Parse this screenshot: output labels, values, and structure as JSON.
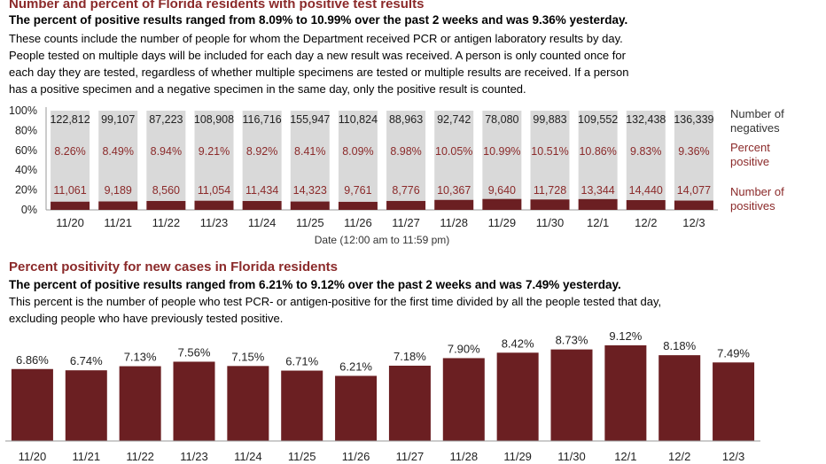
{
  "section1": {
    "title": "Number and percent of Florida residents with positive test results",
    "summary": "The percent of positive results ranged from 8.09% to 10.99% over the past 2 weeks and was 9.36% yesterday.",
    "desc_lines": [
      "These counts include the number of people for whom the Department received PCR or antigen laboratory results by day.",
      "People tested on multiple days will be included for each day a new result was received. A person is only counted once for",
      "each day they are tested, regardless of whether multiple specimens are tested or multiple results are received. If a person",
      "has a positive specimen and a negative specimen in the same day, only the positive result is counted."
    ]
  },
  "section2": {
    "title": "Percent positivity for new cases in Florida residents",
    "summary": "The percent of positive results ranged from 6.21% to 9.12% over the past 2 weeks and was 7.49% yesterday.",
    "desc_lines": [
      "This percent is the number of people who test PCR- or antigen-positive for the first time divided by all the people tested that day,",
      "excluding people who have previously tested positive."
    ]
  },
  "colors": {
    "negatives": "#d9d9d9",
    "positives": "#6b1f22",
    "accent": "#8b2a2a"
  },
  "chart_data": [
    {
      "type": "bar",
      "stacked": true,
      "percent_stacked": true,
      "categories": [
        "11/20",
        "11/21",
        "11/22",
        "11/23",
        "11/24",
        "11/25",
        "11/26",
        "11/27",
        "11/28",
        "11/29",
        "11/30",
        "12/1",
        "12/2",
        "12/3"
      ],
      "yticks": [
        "100%",
        "80%",
        "60%",
        "40%",
        "20%",
        "0%"
      ],
      "xlabel": "Date (12:00 am to 11:59 pm)",
      "series": [
        {
          "name": "Number of negatives",
          "values": [
            122812,
            99107,
            87223,
            108908,
            116716,
            155947,
            110824,
            88963,
            92742,
            78080,
            99883,
            109552,
            132438,
            136339
          ],
          "labels": [
            "122,812",
            "99,107",
            "87,223",
            "108,908",
            "116,716",
            "155,947",
            "110,824",
            "88,963",
            "92,742",
            "78,080",
            "99,883",
            "109,552",
            "132,438",
            "136,339"
          ]
        },
        {
          "name": "Number of positives",
          "values": [
            11061,
            9189,
            8560,
            11054,
            11434,
            14323,
            9761,
            8776,
            10367,
            9640,
            11728,
            13344,
            14440,
            14077
          ],
          "labels": [
            "11,061",
            "9,189",
            "8,560",
            "11,054",
            "11,434",
            "14,323",
            "9,761",
            "8,776",
            "10,367",
            "9,640",
            "11,728",
            "13,344",
            "14,440",
            "14,077"
          ]
        }
      ],
      "percent_positive": {
        "name": "Percent positive",
        "values": [
          8.26,
          8.49,
          8.94,
          9.21,
          8.92,
          8.41,
          8.09,
          8.98,
          10.05,
          10.99,
          10.51,
          10.86,
          9.83,
          9.36
        ],
        "labels": [
          "8.26%",
          "8.49%",
          "8.94%",
          "9.21%",
          "8.92%",
          "8.41%",
          "8.09%",
          "8.98%",
          "10.05%",
          "10.99%",
          "10.51%",
          "10.86%",
          "9.83%",
          "9.36%"
        ]
      },
      "legend": [
        "Number of negatives",
        "Percent positive",
        "Number of positives"
      ],
      "legend_position": "right"
    },
    {
      "type": "bar",
      "categories": [
        "11/20",
        "11/21",
        "11/22",
        "11/23",
        "11/24",
        "11/25",
        "11/26",
        "11/27",
        "11/28",
        "11/29",
        "11/30",
        "12/1",
        "12/2",
        "12/3"
      ],
      "values": [
        6.86,
        6.74,
        7.13,
        7.56,
        7.15,
        6.71,
        6.21,
        7.18,
        7.9,
        8.42,
        8.73,
        9.12,
        8.18,
        7.49
      ],
      "labels": [
        "6.86%",
        "6.74%",
        "7.13%",
        "7.56%",
        "7.15%",
        "6.71%",
        "6.21%",
        "7.18%",
        "7.90%",
        "8.42%",
        "8.73%",
        "9.12%",
        "8.18%",
        "7.49%"
      ]
    }
  ]
}
